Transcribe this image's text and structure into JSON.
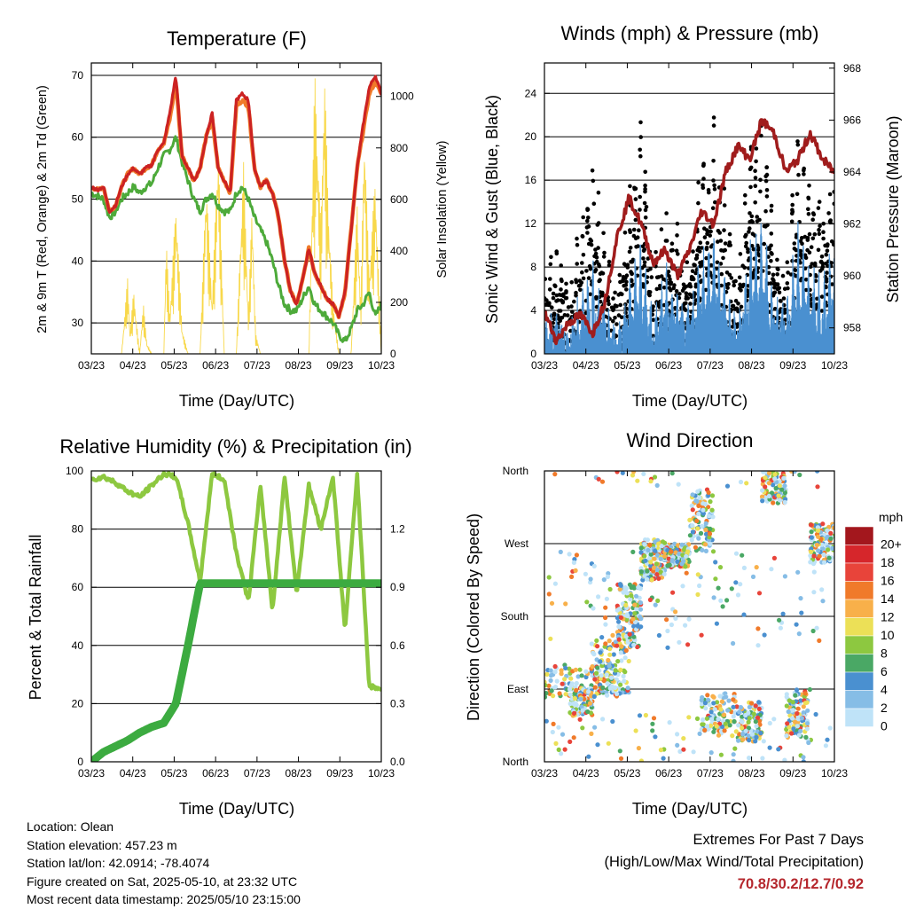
{
  "chart_data": [
    {
      "id": "temperature",
      "type": "line",
      "title": "Temperature (F)",
      "xlabel": "Time (Day/UTC)",
      "ylabel": "2m & 9m T (Red, Orange) & 2m Td (Green)",
      "y2label": "Solar Insolation (Yellow)",
      "x_ticks": [
        "03/23",
        "04/23",
        "05/23",
        "06/23",
        "07/23",
        "08/23",
        "09/23",
        "10/23"
      ],
      "ylim": [
        25,
        72
      ],
      "y_ticks": [
        30,
        40,
        50,
        60,
        70
      ],
      "y2lim": [
        0,
        1130
      ],
      "y2_ticks": [
        0,
        200,
        400,
        600,
        800,
        1000
      ],
      "grid": true,
      "series": [
        {
          "color": "#cc2222",
          "x": [
            0,
            0.5,
            1,
            1.5,
            2,
            2.5,
            3,
            3.5,
            4,
            4.5,
            5,
            5.5,
            6,
            6.5,
            7,
            7.5,
            8,
            8.5,
            9,
            9.5,
            10,
            10.5,
            11,
            11.5,
            12,
            12.5,
            13,
            13.5,
            14,
            14.5,
            15,
            15.5,
            16,
            16.5,
            17,
            17.5,
            18,
            18.5,
            19,
            19.5,
            20,
            20.5,
            21,
            21.5,
            22,
            22.5,
            23,
            23.5,
            24
          ],
          "values": [
            52,
            51.5,
            52,
            48,
            49,
            52,
            54,
            55,
            54,
            55,
            55.5,
            58,
            59,
            64,
            70,
            57,
            55,
            53,
            55,
            60,
            64,
            55,
            53,
            51,
            66,
            67,
            66,
            55,
            52,
            53,
            51,
            47,
            40,
            35,
            33,
            37,
            42,
            38,
            36,
            34,
            33,
            31,
            35,
            45,
            55,
            62,
            68,
            70,
            67
          ]
        },
        {
          "color": "#f07a2a",
          "x": [
            0,
            0.5,
            1,
            1.5,
            2,
            2.5,
            3,
            3.5,
            4,
            4.5,
            5,
            5.5,
            6,
            6.5,
            7,
            7.5,
            8,
            8.5,
            9,
            9.5,
            10,
            10.5,
            11,
            11.5,
            12,
            12.5,
            13,
            13.5,
            14,
            14.5,
            15,
            15.5,
            16,
            16.5,
            17,
            17.5,
            18,
            18.5,
            19,
            19.5,
            20,
            20.5,
            21,
            21.5,
            22,
            22.5,
            23,
            23.5,
            24
          ],
          "values": [
            52,
            51.5,
            52,
            48,
            49,
            52,
            54,
            55,
            54,
            55,
            55.5,
            58,
            59,
            63,
            69,
            57,
            55,
            53,
            55,
            60,
            63,
            55,
            53,
            51,
            65,
            66,
            65,
            55,
            52,
            53,
            51,
            47,
            40,
            35,
            33,
            37,
            42,
            38,
            36,
            34,
            33,
            31,
            35,
            45,
            55,
            61,
            67,
            69,
            67
          ]
        },
        {
          "color": "#4daa3a",
          "x": [
            0,
            0.5,
            1,
            1.5,
            2,
            2.5,
            3,
            3.5,
            4,
            4.5,
            5,
            5.5,
            6,
            6.5,
            7,
            7.5,
            8,
            8.5,
            9,
            9.5,
            10,
            10.5,
            11,
            11.5,
            12,
            12.5,
            13,
            13.5,
            14,
            14.5,
            15,
            15.5,
            16,
            16.5,
            17,
            17.5,
            18,
            18.5,
            19,
            19.5,
            20,
            20.5,
            21,
            21.5,
            22,
            22.5,
            23,
            23.5,
            24
          ],
          "values": [
            51,
            50.5,
            50,
            47,
            48,
            50,
            51,
            52,
            51,
            52,
            52.5,
            55,
            57,
            58,
            60,
            56,
            53,
            50,
            48,
            50,
            51,
            49,
            48,
            48,
            51,
            52,
            50,
            47,
            45,
            43,
            40,
            36,
            33,
            32,
            32,
            34,
            36,
            33,
            32,
            31,
            30,
            28,
            27,
            29,
            32,
            33,
            35,
            31,
            33
          ]
        },
        {
          "color": "#f8d84a",
          "x": [
            0,
            2.5,
            3,
            3.2,
            3.5,
            4,
            4.3,
            4.6,
            5,
            5.5,
            6,
            6.2,
            6.5,
            7,
            7.5,
            8,
            9,
            9.5,
            10,
            10.5,
            11,
            12,
            12.3,
            12.6,
            13,
            13.3,
            13.6,
            14,
            15,
            16,
            17,
            18,
            18.5,
            19,
            19.3,
            19.6,
            20,
            20.5,
            21,
            21.5,
            22,
            22.3,
            22.6,
            23,
            23.5,
            24
          ],
          "values": [
            0,
            0,
            300,
            80,
            250,
            0,
            200,
            40,
            0,
            0,
            0,
            450,
            150,
            600,
            100,
            0,
            0,
            700,
            200,
            850,
            0,
            0,
            400,
            750,
            150,
            600,
            80,
            0,
            0,
            0,
            0,
            0,
            1100,
            500,
            1130,
            600,
            200,
            0,
            0,
            0,
            600,
            200,
            900,
            300,
            700,
            0
          ]
        }
      ]
    },
    {
      "id": "winds",
      "type": "line",
      "title": "Winds (mph) & Pressure (mb)",
      "xlabel": "Time (Day/UTC)",
      "ylabel": "Sonic Wind & Gust (Blue, Black)",
      "y2label": "Station Pressure (Maroon)",
      "x_ticks": [
        "03/23",
        "04/23",
        "05/23",
        "06/23",
        "07/23",
        "08/23",
        "09/23",
        "10/23"
      ],
      "ylim": [
        0,
        26.8
      ],
      "y_ticks": [
        0,
        4,
        8,
        12,
        16,
        20,
        24
      ],
      "y2lim": [
        957,
        968.2
      ],
      "y2_ticks": [
        958,
        960,
        962,
        964,
        966,
        968
      ],
      "grid": true,
      "series": [
        {
          "color": "#4a90d0",
          "x": [
            0,
            1,
            2,
            3,
            4,
            5,
            6,
            7,
            8,
            9,
            10,
            11,
            12,
            13,
            14,
            15,
            16,
            17,
            18,
            19,
            20,
            21,
            22,
            23,
            24
          ],
          "values": [
            2,
            3,
            1,
            4,
            6,
            3,
            1,
            5,
            8,
            2,
            6,
            4,
            3,
            7,
            9,
            5,
            2,
            8,
            10,
            4,
            3,
            9,
            6,
            5,
            8
          ]
        },
        {
          "color": "#000000",
          "x": [
            0,
            1,
            2,
            3,
            4,
            5,
            6,
            7,
            8,
            9,
            10,
            11,
            12,
            13,
            14,
            15,
            16,
            17,
            18,
            19,
            20,
            21,
            22,
            23,
            24
          ],
          "values": [
            4,
            6,
            3,
            9,
            14,
            6,
            3,
            10,
            16,
            5,
            9,
            8,
            6,
            13,
            16,
            10,
            4,
            15,
            17,
            8,
            5,
            16,
            12,
            10,
            15
          ]
        },
        {
          "color": "#a01c1c",
          "x": [
            0,
            1,
            2,
            3,
            4,
            5,
            6,
            7,
            8,
            9,
            10,
            11,
            12,
            13,
            14,
            15,
            16,
            17,
            18,
            19,
            20,
            21,
            22,
            23,
            24
          ],
          "values": [
            958.6,
            957.5,
            958.2,
            958.5,
            957.8,
            959,
            961.5,
            963,
            962,
            960.5,
            961,
            960,
            961,
            962.5,
            962,
            964,
            965,
            964.5,
            966,
            965.5,
            964,
            964.5,
            965.5,
            964.5,
            964
          ]
        }
      ]
    },
    {
      "id": "humidity",
      "type": "line",
      "title": "Relative Humidity (%) & Precipitation (in)",
      "xlabel": "Time (Day/UTC)",
      "ylabel": "Percent & Total Rainfall",
      "x_ticks": [
        "03/23",
        "04/23",
        "05/23",
        "06/23",
        "07/23",
        "08/23",
        "09/23",
        "10/23"
      ],
      "ylim": [
        0,
        100
      ],
      "y_ticks": [
        0,
        20,
        40,
        60,
        80,
        100
      ],
      "y2lim": [
        0,
        1.5
      ],
      "y2_ticks": [
        "0.0",
        "0.3",
        "0.6",
        "0.9",
        "1.2"
      ],
      "grid": true,
      "series": [
        {
          "color": "#8dc840",
          "x": [
            0,
            1,
            2,
            3,
            4,
            5,
            6,
            7,
            8,
            9,
            10,
            11,
            12,
            13,
            14,
            15,
            16,
            17,
            18,
            19,
            20,
            21,
            22,
            23,
            24
          ],
          "values": [
            97,
            98,
            96,
            93,
            91,
            95,
            99,
            98,
            82,
            62,
            99,
            97,
            72,
            55,
            95,
            52,
            98,
            58,
            95,
            80,
            98,
            45,
            99,
            26,
            25
          ]
        },
        {
          "color": "#3cab40",
          "x": [
            0,
            1,
            2,
            3,
            4,
            5,
            6,
            7,
            8,
            9,
            10,
            11,
            12,
            13,
            14,
            15,
            16,
            17,
            18,
            19,
            20,
            21,
            22,
            23,
            24
          ],
          "values": [
            0.0,
            0.05,
            0.08,
            0.11,
            0.15,
            0.18,
            0.2,
            0.3,
            0.6,
            0.92,
            0.92,
            0.92,
            0.92,
            0.92,
            0.92,
            0.92,
            0.92,
            0.92,
            0.92,
            0.92,
            0.92,
            0.92,
            0.92,
            0.92,
            0.92
          ]
        }
      ]
    },
    {
      "id": "direction",
      "type": "scatter",
      "title": "Wind Direction",
      "xlabel": "Time (Day/UTC)",
      "ylabel": "Direction (Colored By Speed)",
      "x_ticks": [
        "03/23",
        "04/23",
        "05/23",
        "06/23",
        "07/23",
        "08/23",
        "09/23",
        "10/23"
      ],
      "y_ticks": [
        "North",
        "East",
        "South",
        "West",
        "North"
      ],
      "ylim": [
        0,
        360
      ],
      "legend": {
        "title": "mph",
        "labels": [
          "20+",
          "18",
          "16",
          "14",
          "12",
          "10",
          "8",
          "6",
          "4",
          "2",
          "0"
        ],
        "colors": [
          "#a3171d",
          "#d6262b",
          "#e8443a",
          "#f07a2a",
          "#f8b04a",
          "#ece057",
          "#8dc840",
          "#4aa865",
          "#4a90d0",
          "#86bde6",
          "#bfe3f8"
        ],
        "placement": "right"
      }
    }
  ],
  "info": {
    "location": "Location: Olean",
    "elevation": "Station elevation: 457.23 m",
    "latlon": "Station lat/lon: 42.0914; -78.4074",
    "created": "Figure created on Sat, 2025-05-10, at 23:32 UTC",
    "recent": "Most recent data timestamp: 2025/05/10 23:15:00"
  },
  "extremes": {
    "title": "Extremes For Past 7 Days",
    "subtitle": "(High/Low/Max Wind/Total Precipitation)",
    "values": "70.8/30.2/12.7/0.92"
  }
}
